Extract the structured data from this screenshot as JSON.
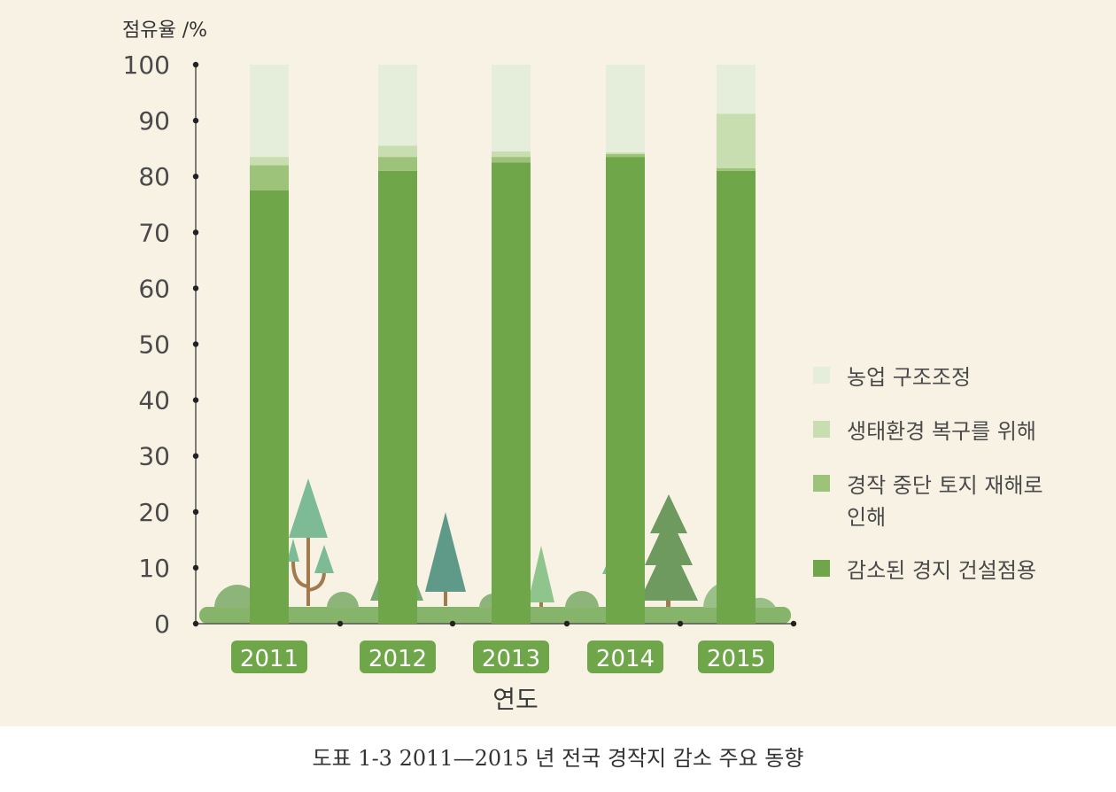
{
  "chart_data": {
    "type": "bar",
    "stacked": true,
    "ylabel": "점유율 /%",
    "xlabel": "연도",
    "ylim": [
      0,
      100
    ],
    "yticks": [
      0,
      10,
      20,
      30,
      40,
      50,
      60,
      70,
      80,
      90,
      100
    ],
    "categories": [
      "2011",
      "2012",
      "2013",
      "2014",
      "2015"
    ],
    "series": [
      {
        "name": "감소된 경지 건설점용",
        "color": "#6fa64a",
        "values": [
          77.5,
          81,
          82.5,
          83.5,
          81
        ]
      },
      {
        "name": "경작 중단 토지 재해로 인해",
        "color": "#9dc27a",
        "values": [
          4.5,
          2.5,
          1,
          0.5,
          0.5
        ]
      },
      {
        "name": "생태환경 복구를 위해",
        "color": "#c9deb0",
        "values": [
          1.5,
          2,
          1,
          0.3,
          9.7
        ]
      },
      {
        "name": "농업 구조조정",
        "color": "#e5eedb",
        "values": [
          16.5,
          14.5,
          15.5,
          15.7,
          8.8
        ]
      }
    ],
    "legend_order": [
      3,
      2,
      1,
      0
    ],
    "legend": "right",
    "grid": false
  },
  "caption": "도표 1-3 2011—2015 년 전국 경작지 감소 주요 동향"
}
